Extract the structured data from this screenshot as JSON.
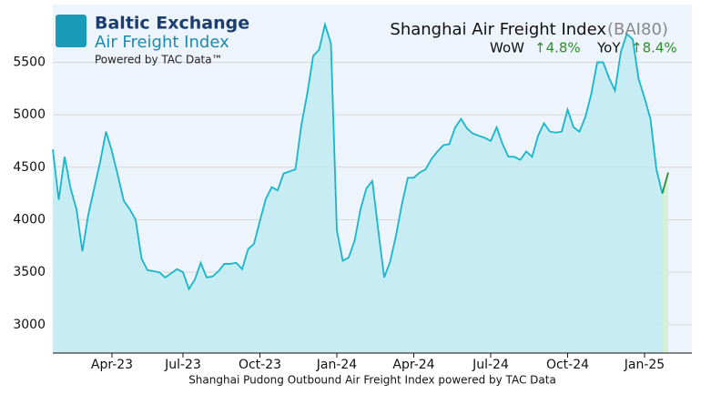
{
  "chart_data": {
    "type": "area",
    "logo": {
      "name": "Baltic Exchange",
      "product": "Air Freight Index",
      "credit": "Powered by TAC Data™"
    },
    "title": "Shanghai Air Freight Index",
    "title_suffix": "(BAI80)",
    "stats": [
      {
        "label": "WoW",
        "value": "↑4.8%"
      },
      {
        "label": "YoY",
        "value": "↑8.4%"
      }
    ],
    "x_label": "Shanghai Pudong Outbound Air Freight Index powered by TAC Data",
    "categories": [
      null,
      null,
      null,
      null,
      null,
      null,
      null,
      null,
      null,
      null,
      "Apr-23",
      null,
      null,
      null,
      null,
      null,
      null,
      null,
      null,
      null,
      null,
      null,
      "Jul-23",
      null,
      null,
      null,
      null,
      null,
      null,
      null,
      null,
      null,
      null,
      null,
      null,
      "Oct-23",
      null,
      null,
      null,
      null,
      null,
      null,
      null,
      null,
      null,
      null,
      null,
      null,
      "Jan-24",
      null,
      null,
      null,
      null,
      null,
      null,
      null,
      null,
      null,
      null,
      null,
      null,
      "Apr-24",
      null,
      null,
      null,
      null,
      null,
      null,
      null,
      null,
      null,
      null,
      null,
      null,
      "Jul-24",
      null,
      null,
      null,
      null,
      null,
      null,
      null,
      null,
      null,
      null,
      null,
      null,
      "Oct-24",
      null,
      null,
      null,
      null,
      null,
      null,
      null,
      null,
      null,
      null,
      null,
      null,
      "Jan-25",
      null,
      null,
      null,
      null
    ],
    "series": [
      {
        "name": "BAI80",
        "color": "#17b6cc",
        "fill": "#bfeaf1",
        "values": [
          4670,
          4190,
          4600,
          4300,
          4100,
          3700,
          4050,
          4300,
          4550,
          4840,
          4650,
          4420,
          4180,
          4100,
          4000,
          3630,
          3520,
          3510,
          3500,
          3450,
          3490,
          3530,
          3500,
          3340,
          3430,
          3590,
          3450,
          3460,
          3510,
          3580,
          3580,
          3590,
          3530,
          3720,
          3770,
          3990,
          4200,
          4310,
          4280,
          4440,
          4460,
          4480,
          4900,
          5200,
          5560,
          5620,
          5860,
          5680,
          3900,
          3610,
          3640,
          3800,
          4100,
          4300,
          4370,
          3900,
          3450,
          3600,
          3850,
          4150,
          4400,
          4400,
          4450,
          4480,
          4580,
          4650,
          4710,
          4720,
          4880,
          4960,
          4870,
          4820,
          4800,
          4780,
          4750,
          4880,
          4720,
          4600,
          4600,
          4570,
          4650,
          4600,
          4800,
          4920,
          4840,
          4830,
          4840,
          5050,
          4880,
          4840,
          4980,
          5200,
          5500,
          5500,
          5350,
          5230,
          5600,
          5770,
          5720,
          5340,
          5160,
          4960,
          4480,
          4250,
          4450
        ]
      }
    ],
    "last_segment_color": "#2e8b2e",
    "last_segment_fill": "#d6f0d6",
    "ylim": [
      2730,
      6050
    ],
    "yticks": [
      3000,
      3500,
      4000,
      4500,
      5000,
      5500
    ],
    "grid": true
  }
}
